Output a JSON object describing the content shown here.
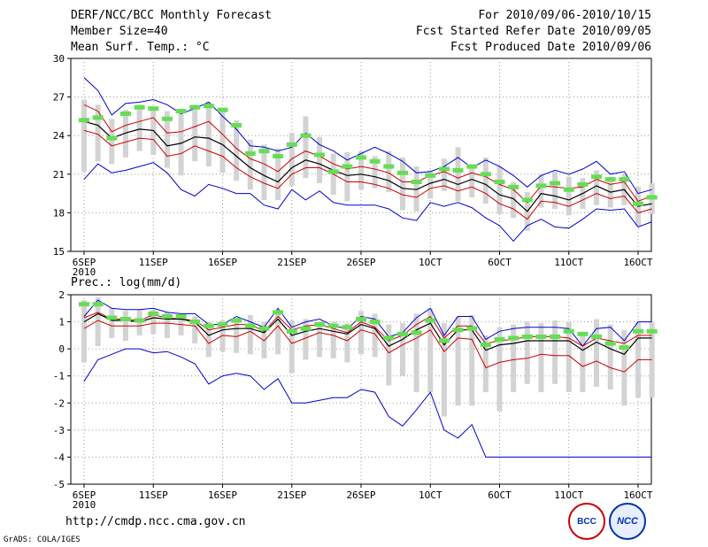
{
  "header": {
    "title": "DERF/NCC/BCC Monthly Forecast",
    "member_size": "Member Size=40",
    "variable": "Mean Surf. Temp.: °C",
    "period": "For 2010/09/06-2010/10/15",
    "refer_date": "Fcst Started Refer Date 2010/09/05",
    "produced_date": "Fcst Produced Date 2010/09/06"
  },
  "footer": {
    "url": "http://cmdp.ncc.cma.gov.cn",
    "grads": "GrADS: COLA/IGES",
    "logo_left_text": "BCC",
    "logo_right_text": "NCC"
  },
  "colors": {
    "spread_bar": "#d3d3d3",
    "observed_dash": "#66dd55",
    "ensemble_mean": "#000000",
    "inner_band": "#cc0000",
    "outer_envelope": "#0000cc",
    "grid": "#999999"
  },
  "chart_data": [
    {
      "type": "line",
      "title": "Mean Surf. Temp.: °C",
      "xlabel": "",
      "ylabel": "",
      "x_tick_labels": [
        "6SEP",
        "11SEP",
        "16SEP",
        "21SEP",
        "26SEP",
        "1OCT",
        "6OCT",
        "11OCT",
        "16OCT"
      ],
      "x_tick_positions": [
        0,
        5,
        10,
        15,
        20,
        25,
        30,
        35,
        40
      ],
      "x_sub_label": "2010",
      "ylim": [
        15,
        30
      ],
      "y_ticks": [
        15,
        18,
        21,
        24,
        27,
        30
      ],
      "grid": true,
      "days": 40,
      "series": [
        {
          "name": "outer_upper",
          "values": [
            28.5,
            27.5,
            25.6,
            26.5,
            26.6,
            26.8,
            26.4,
            25.7,
            26.1,
            26.6,
            25.5,
            24.5,
            23.2,
            23.1,
            22.8,
            23.1,
            24.2,
            23.3,
            22.8,
            22.1,
            22.6,
            23.1,
            22.6,
            22.0,
            21.1,
            21.2,
            21.6,
            22.3,
            21.5,
            22.1,
            21.6,
            20.9,
            20.0,
            20.9,
            21.3,
            21.0,
            21.4,
            22.0,
            21.0,
            21.2,
            19.5,
            19.8
          ]
        },
        {
          "name": "inner_upper",
          "values": [
            26.4,
            25.9,
            24.3,
            24.8,
            25.1,
            25.4,
            24.2,
            24.3,
            24.7,
            25.1,
            24.1,
            23.0,
            22.2,
            21.8,
            21.2,
            22.2,
            22.8,
            22.4,
            21.8,
            21.4,
            21.6,
            21.4,
            21.1,
            20.4,
            20.4,
            20.9,
            21.2,
            20.7,
            21.1,
            20.8,
            20.2,
            19.8,
            18.8,
            20.1,
            20.0,
            19.9,
            20.0,
            20.6,
            20.2,
            20.4,
            18.9,
            19.3
          ]
        },
        {
          "name": "mean",
          "values": [
            25.1,
            24.8,
            23.8,
            24.2,
            24.5,
            24.4,
            23.2,
            23.4,
            23.9,
            23.8,
            23.3,
            22.4,
            21.5,
            20.9,
            20.4,
            21.5,
            22.1,
            21.8,
            21.3,
            20.9,
            21.0,
            20.8,
            20.5,
            19.9,
            19.8,
            20.3,
            20.6,
            20.2,
            20.6,
            20.2,
            19.4,
            19.1,
            18.1,
            19.5,
            19.3,
            19.0,
            19.5,
            20.1,
            19.6,
            19.8,
            18.5,
            18.7
          ]
        },
        {
          "name": "inner_lower",
          "values": [
            24.4,
            24.1,
            23.2,
            23.5,
            23.8,
            23.7,
            22.4,
            22.6,
            23.2,
            22.8,
            22.4,
            21.5,
            20.8,
            20.3,
            19.9,
            21.0,
            21.5,
            21.5,
            21.0,
            20.4,
            20.4,
            20.2,
            19.9,
            19.4,
            19.2,
            19.9,
            20.1,
            19.7,
            20.0,
            19.5,
            18.7,
            18.3,
            17.5,
            18.9,
            18.8,
            18.5,
            19.0,
            19.5,
            19.1,
            19.3,
            18.0,
            18.3
          ]
        },
        {
          "name": "outer_lower",
          "values": [
            20.6,
            21.8,
            21.1,
            21.3,
            21.6,
            21.9,
            21.1,
            19.8,
            19.3,
            20.2,
            19.9,
            19.5,
            19.5,
            18.6,
            18.3,
            19.8,
            19.0,
            19.7,
            18.8,
            18.6,
            18.6,
            18.6,
            18.3,
            17.6,
            17.4,
            18.8,
            18.5,
            18.8,
            18.4,
            17.6,
            17.0,
            15.8,
            17.0,
            17.5,
            16.9,
            16.8,
            17.5,
            18.3,
            18.2,
            18.3,
            16.9,
            17.3
          ]
        },
        {
          "name": "observed",
          "values": [
            25.2,
            25.4,
            23.8,
            25.7,
            26.2,
            26.1,
            25.3,
            25.9,
            26.2,
            26.3,
            26.0,
            24.8,
            22.6,
            22.8,
            22.4,
            23.3,
            24.0,
            22.5,
            21.2,
            21.6,
            22.3,
            22.0,
            21.6,
            21.1,
            20.4,
            20.9,
            21.4,
            21.3,
            21.6,
            21.0,
            20.4,
            20.0,
            19.0,
            20.1,
            20.3,
            19.8,
            20.2,
            20.8,
            20.6,
            20.6,
            18.7,
            19.2
          ]
        },
        {
          "name": "spread_max",
          "values": [
            26.8,
            26.4,
            25.3,
            26.0,
            26.4,
            26.2,
            25.9,
            26.1,
            26.4,
            26.6,
            25.9,
            25.2,
            23.7,
            23.3,
            23.0,
            24.2,
            25.5,
            23.9,
            22.6,
            22.7,
            22.8,
            22.4,
            22.8,
            22.3,
            21.6,
            21.3,
            22.2,
            23.1,
            21.6,
            22.3,
            21.6,
            20.4,
            19.6,
            21.0,
            21.2,
            20.8,
            20.7,
            21.3,
            20.8,
            21.0,
            20.0,
            20.3
          ]
        },
        {
          "name": "spread_min",
          "values": [
            21.2,
            22.0,
            21.8,
            22.3,
            22.8,
            22.5,
            21.5,
            20.9,
            22.0,
            21.6,
            21.1,
            20.5,
            19.8,
            19.0,
            19.0,
            20.1,
            20.7,
            20.3,
            19.4,
            18.9,
            19.8,
            19.9,
            19.6,
            18.2,
            18.1,
            19.1,
            19.7,
            18.9,
            19.2,
            18.7,
            17.9,
            17.6,
            16.6,
            18.4,
            18.3,
            17.8,
            18.3,
            18.6,
            18.4,
            18.6,
            17.0,
            17.9
          ]
        }
      ]
    },
    {
      "type": "line",
      "title": "Prec.: log(mm/d)",
      "xlabel": "",
      "ylabel": "",
      "x_tick_labels": [
        "6SEP",
        "11SEP",
        "16SEP",
        "21SEP",
        "26SEP",
        "1OCT",
        "6OCT",
        "11OCT",
        "16OCT"
      ],
      "x_tick_positions": [
        0,
        5,
        10,
        15,
        20,
        25,
        30,
        35,
        40
      ],
      "x_sub_label": "2010",
      "ylim": [
        -5,
        2
      ],
      "y_ticks": [
        -5,
        -4,
        -3,
        -2,
        -1,
        0,
        1,
        2
      ],
      "grid": true,
      "days": 40,
      "series": [
        {
          "name": "outer_upper",
          "values": [
            1.2,
            1.8,
            1.5,
            1.45,
            1.45,
            1.5,
            1.35,
            1.3,
            1.3,
            0.9,
            0.9,
            1.2,
            1.0,
            0.8,
            1.5,
            0.8,
            1.0,
            1.1,
            0.85,
            0.75,
            1.2,
            1.1,
            0.45,
            0.6,
            1.15,
            1.5,
            0.5,
            1.2,
            1.2,
            0.35,
            0.65,
            0.75,
            0.8,
            0.8,
            0.8,
            0.75,
            0.1,
            0.75,
            0.8,
            0.3,
            1.0,
            1.0
          ]
        },
        {
          "name": "inner_upper",
          "values": [
            1.15,
            1.35,
            1.1,
            1.1,
            1.05,
            1.25,
            1.15,
            1.1,
            1.05,
            0.7,
            0.8,
            0.9,
            0.9,
            0.65,
            1.2,
            0.7,
            0.85,
            0.9,
            0.75,
            0.6,
            1.0,
            0.8,
            0.3,
            0.5,
            0.9,
            1.2,
            0.4,
            0.85,
            0.85,
            0.2,
            0.3,
            0.35,
            0.45,
            0.45,
            0.45,
            0.4,
            0.1,
            0.4,
            0.3,
            0.2,
            0.5,
            0.5
          ]
        },
        {
          "name": "mean",
          "values": [
            1.0,
            1.3,
            1.05,
            1.05,
            1.0,
            1.15,
            1.1,
            1.1,
            1.0,
            0.5,
            0.7,
            0.75,
            0.75,
            0.6,
            1.1,
            0.5,
            0.65,
            0.75,
            0.65,
            0.55,
            0.9,
            0.75,
            0.1,
            0.35,
            0.7,
            0.95,
            0.15,
            0.7,
            0.7,
            -0.05,
            0.15,
            0.2,
            0.3,
            0.3,
            0.3,
            0.3,
            -0.05,
            0.25,
            0.0,
            -0.2,
            0.4,
            0.4
          ]
        },
        {
          "name": "inner_lower",
          "values": [
            0.75,
            1.05,
            0.85,
            0.85,
            0.85,
            0.95,
            0.95,
            0.9,
            0.85,
            0.2,
            0.5,
            0.45,
            0.65,
            0.3,
            0.85,
            0.2,
            0.4,
            0.6,
            0.5,
            0.3,
            0.7,
            0.55,
            -0.15,
            0.15,
            0.4,
            0.7,
            -0.1,
            0.4,
            0.35,
            -0.7,
            -0.5,
            -0.4,
            -0.35,
            -0.2,
            -0.25,
            -0.25,
            -0.65,
            -0.45,
            -0.7,
            -0.85,
            -0.4,
            -0.4
          ]
        },
        {
          "name": "outer_lower",
          "values": [
            -1.2,
            -0.4,
            -0.2,
            0.0,
            0.0,
            -0.15,
            -0.1,
            -0.3,
            -0.55,
            -1.3,
            -1.0,
            -0.9,
            -1.0,
            -1.5,
            -1.1,
            -2.0,
            -2.0,
            -1.9,
            -1.8,
            -1.8,
            -1.5,
            -1.6,
            -2.5,
            -2.85,
            -2.25,
            -1.6,
            -3.0,
            -3.3,
            -2.8,
            -4.0,
            -4.0,
            -4.0,
            -4.0,
            -4.0,
            -4.0,
            -4.0,
            -4.0,
            -4.0,
            -4.0,
            -4.0,
            -4.0,
            -4.0
          ]
        },
        {
          "name": "observed",
          "values": [
            1.65,
            1.65,
            1.15,
            1.1,
            1.05,
            1.3,
            1.2,
            1.2,
            1.0,
            0.85,
            0.9,
            1.05,
            0.85,
            0.75,
            1.35,
            0.65,
            0.75,
            0.9,
            0.85,
            0.8,
            1.1,
            1.0,
            0.4,
            0.55,
            0.6,
            1.05,
            0.3,
            0.7,
            0.75,
            0.15,
            0.35,
            0.4,
            0.45,
            0.45,
            0.45,
            0.65,
            0.55,
            0.45,
            0.2,
            0.05,
            0.65,
            0.65
          ]
        },
        {
          "name": "spread_max",
          "values": [
            1.8,
            1.9,
            1.5,
            1.4,
            1.45,
            1.45,
            1.35,
            1.2,
            1.2,
            1.0,
            1.05,
            1.15,
            1.25,
            1.0,
            1.35,
            1.05,
            1.1,
            1.0,
            1.0,
            0.95,
            1.4,
            1.3,
            0.9,
            0.95,
            1.3,
            1.5,
            0.95,
            1.2,
            1.25,
            0.5,
            0.8,
            0.9,
            1.0,
            0.95,
            1.05,
            1.0,
            0.6,
            1.1,
            0.9,
            0.7,
            1.0,
            1.0
          ]
        },
        {
          "name": "spread_min",
          "values": [
            -0.5,
            0.1,
            0.4,
            0.3,
            0.5,
            0.55,
            0.4,
            0.5,
            0.2,
            -0.3,
            -0.1,
            -0.15,
            -0.2,
            -0.35,
            -0.2,
            -0.9,
            -0.4,
            -0.3,
            -0.35,
            -0.5,
            -0.2,
            -0.3,
            -1.35,
            -1.0,
            -1.6,
            -1.6,
            -2.5,
            -2.1,
            -2.1,
            -1.6,
            -2.3,
            -1.6,
            -1.3,
            -1.6,
            -1.3,
            -1.6,
            -1.6,
            -1.4,
            -1.5,
            -2.1,
            -1.8,
            -1.8
          ]
        }
      ]
    }
  ]
}
